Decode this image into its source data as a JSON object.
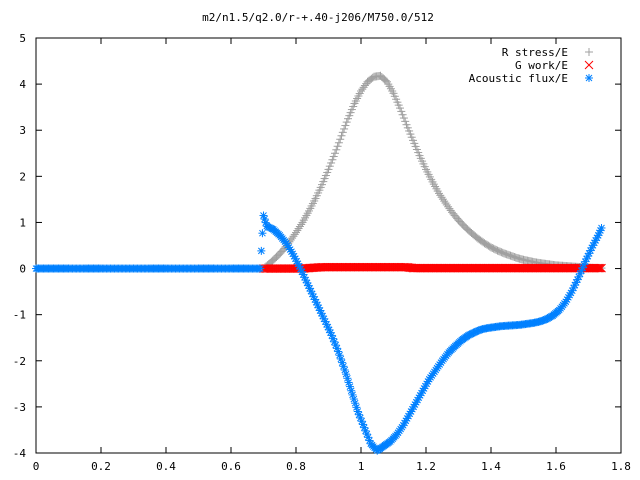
{
  "chart_data": {
    "type": "scatter",
    "title": "m2/n1.5/q2.0/r-+.40-j206/M750.0/512",
    "xlabel": "",
    "ylabel": "",
    "xlim": [
      0,
      1.8
    ],
    "ylim": [
      -4,
      5
    ],
    "xticks": [
      "0",
      "0.2",
      "0.4",
      "0.6",
      "0.8",
      "1",
      "1.2",
      "1.4",
      "1.6",
      "1.8"
    ],
    "yticks": [
      "5",
      "4",
      "3",
      "2",
      "1",
      "0",
      "-1",
      "-2",
      "-3",
      "-4"
    ],
    "legend_position": "top-right",
    "series": [
      {
        "name": "R stress/E",
        "marker": "plus",
        "color": "#a0a0a0",
        "x": [
          0.7,
          0.72,
          0.74,
          0.76,
          0.78,
          0.8,
          0.82,
          0.84,
          0.86,
          0.88,
          0.9,
          0.92,
          0.94,
          0.96,
          0.98,
          1.0,
          1.02,
          1.04,
          1.06,
          1.08,
          1.1,
          1.12,
          1.14,
          1.16,
          1.18,
          1.2,
          1.22,
          1.24,
          1.26,
          1.28,
          1.3,
          1.32,
          1.34,
          1.36,
          1.38,
          1.4,
          1.42,
          1.44,
          1.46,
          1.48,
          1.5,
          1.52,
          1.54,
          1.56,
          1.58,
          1.6,
          1.62,
          1.64,
          1.66,
          1.68,
          1.7,
          1.72,
          1.74
        ],
        "y": [
          0.0,
          0.12,
          0.25,
          0.4,
          0.58,
          0.78,
          1.0,
          1.25,
          1.52,
          1.82,
          2.15,
          2.5,
          2.88,
          3.25,
          3.58,
          3.85,
          4.05,
          4.16,
          4.18,
          4.05,
          3.8,
          3.48,
          3.12,
          2.78,
          2.45,
          2.15,
          1.88,
          1.63,
          1.42,
          1.22,
          1.05,
          0.9,
          0.77,
          0.65,
          0.55,
          0.46,
          0.39,
          0.33,
          0.28,
          0.23,
          0.19,
          0.16,
          0.13,
          0.11,
          0.09,
          0.07,
          0.06,
          0.05,
          0.04,
          0.03,
          0.02,
          0.01,
          0.01
        ]
      },
      {
        "name": "G work/E",
        "marker": "cross",
        "color": "#ff0000",
        "x": [
          0.7,
          0.72,
          0.74,
          0.76,
          0.78,
          0.8,
          0.82,
          0.84,
          0.86,
          0.88,
          0.9,
          0.92,
          0.94,
          0.96,
          0.98,
          1.0,
          1.02,
          1.04,
          1.06,
          1.08,
          1.1,
          1.12,
          1.14,
          1.16,
          1.18,
          1.2,
          1.22,
          1.24,
          1.26,
          1.28,
          1.3,
          1.32,
          1.34,
          1.36,
          1.38,
          1.4,
          1.42,
          1.44,
          1.46,
          1.48,
          1.5,
          1.52,
          1.54,
          1.56,
          1.58,
          1.6,
          1.62,
          1.64,
          1.66,
          1.68,
          1.7,
          1.72,
          1.74
        ],
        "y": [
          0.0,
          0.0,
          0.0,
          0.0,
          0.0,
          0.0,
          0.0,
          0.01,
          0.02,
          0.03,
          0.03,
          0.03,
          0.03,
          0.03,
          0.03,
          0.03,
          0.03,
          0.03,
          0.03,
          0.03,
          0.03,
          0.03,
          0.03,
          0.01,
          0.01,
          0.01,
          0.01,
          0.01,
          0.01,
          0.01,
          0.01,
          0.01,
          0.01,
          0.01,
          0.01,
          0.01,
          0.01,
          0.01,
          0.01,
          0.01,
          0.01,
          0.01,
          0.01,
          0.01,
          0.01,
          0.01,
          0.01,
          0.01,
          0.01,
          0.01,
          0.01,
          0.01,
          0.01
        ]
      },
      {
        "name": "Acoustic flux/E",
        "marker": "star",
        "color": "#0080ff",
        "x": [
          0.0,
          0.05,
          0.1,
          0.15,
          0.2,
          0.25,
          0.3,
          0.35,
          0.4,
          0.45,
          0.5,
          0.55,
          0.6,
          0.65,
          0.69,
          0.7,
          0.71,
          0.73,
          0.75,
          0.77,
          0.79,
          0.81,
          0.83,
          0.85,
          0.87,
          0.89,
          0.91,
          0.93,
          0.95,
          0.97,
          0.99,
          1.01,
          1.03,
          1.05,
          1.07,
          1.09,
          1.11,
          1.13,
          1.15,
          1.17,
          1.19,
          1.21,
          1.23,
          1.25,
          1.27,
          1.29,
          1.31,
          1.33,
          1.35,
          1.37,
          1.39,
          1.41,
          1.43,
          1.45,
          1.47,
          1.49,
          1.51,
          1.53,
          1.55,
          1.57,
          1.59,
          1.61,
          1.63,
          1.65,
          1.67,
          1.69,
          1.71,
          1.73,
          1.74
        ],
        "y": [
          0,
          0,
          0,
          0,
          0,
          0,
          0,
          0,
          0,
          0,
          0,
          0,
          0,
          0,
          0,
          1.15,
          0.92,
          0.85,
          0.72,
          0.55,
          0.32,
          0.05,
          -0.25,
          -0.55,
          -0.85,
          -1.15,
          -1.45,
          -1.8,
          -2.2,
          -2.65,
          -3.1,
          -3.45,
          -3.8,
          -3.95,
          -3.85,
          -3.75,
          -3.6,
          -3.4,
          -3.15,
          -2.9,
          -2.65,
          -2.4,
          -2.2,
          -2.0,
          -1.82,
          -1.68,
          -1.55,
          -1.45,
          -1.38,
          -1.32,
          -1.29,
          -1.27,
          -1.25,
          -1.24,
          -1.23,
          -1.22,
          -1.2,
          -1.18,
          -1.15,
          -1.1,
          -1.02,
          -0.9,
          -0.72,
          -0.48,
          -0.18,
          0.15,
          0.45,
          0.72,
          0.88
        ]
      }
    ]
  }
}
